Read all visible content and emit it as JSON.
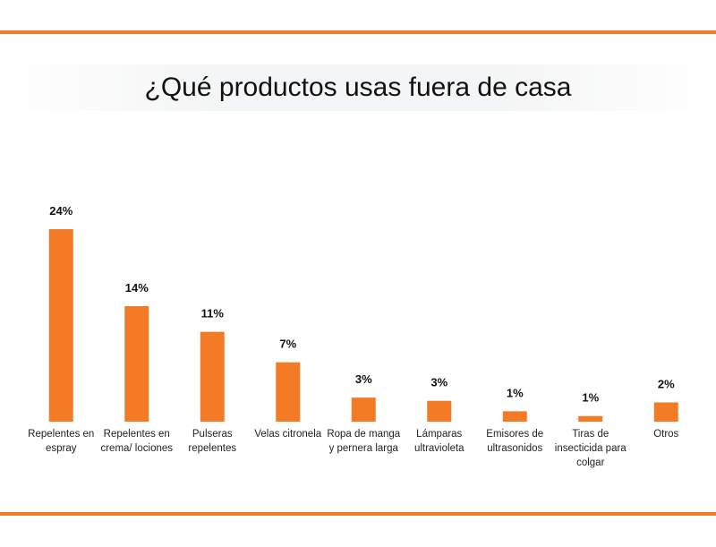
{
  "chart_data": {
    "type": "bar",
    "title": "¿Qué productos usas fuera de casa",
    "categories": [
      "Repelentes en espray",
      "Repelentes en crema/ lociones",
      "Pulseras repelentes",
      "Velas citronela",
      "Ropa de manga y pernera larga",
      "Lámparas ultravioleta",
      "Emisores de ultrasonidos",
      "Tiras de insecticida para colgar",
      "Otros"
    ],
    "values": [
      24,
      14.4,
      11.2,
      7.4,
      3,
      2.6,
      1.3,
      0.7,
      2.4
    ],
    "value_labels": [
      "24%",
      "14%",
      "11%",
      "7%",
      "3%",
      "3%",
      "1%",
      "1%",
      "2%"
    ],
    "color": "#f47b25"
  }
}
